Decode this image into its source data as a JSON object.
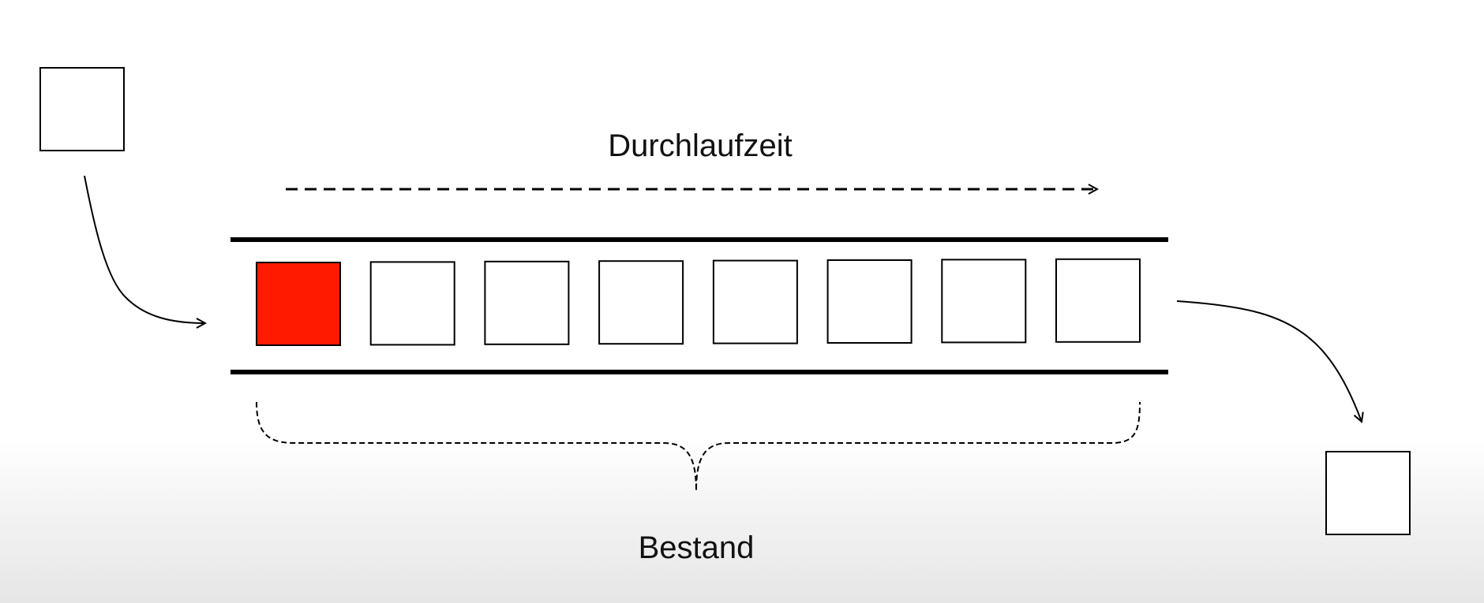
{
  "labels": {
    "lead_time": "Durchlaufzeit",
    "inventory": "Bestand"
  },
  "conveyor": {
    "slot_count": 8,
    "highlighted_slot": 0
  },
  "colors": {
    "highlight": "#ff1a00",
    "stroke": "#000000",
    "box_fill": "#ffffff"
  }
}
